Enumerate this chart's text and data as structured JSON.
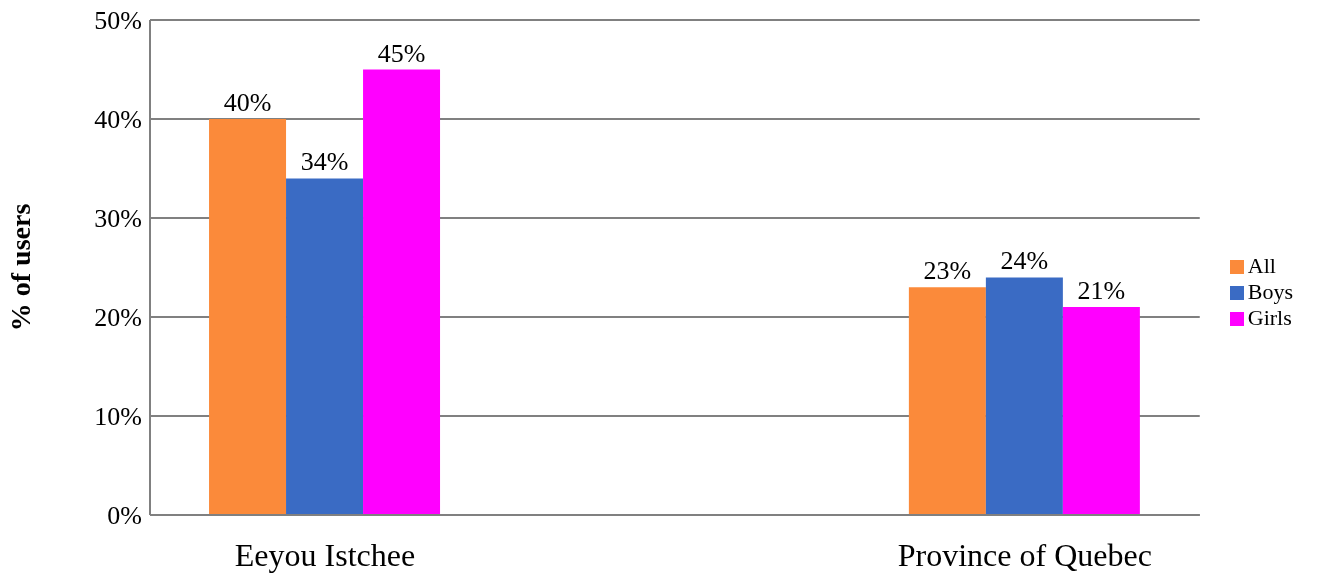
{
  "chart_data": {
    "type": "bar",
    "ylabel": "% of users",
    "categories": [
      "Eeyou Istchee",
      "Province of Quebec"
    ],
    "series": [
      {
        "name": "All",
        "color": "#fb8a3a",
        "values": [
          40,
          23
        ],
        "value_labels": [
          "40%",
          "23%"
        ]
      },
      {
        "name": "Boys",
        "color": "#3a6bc4",
        "values": [
          34,
          24
        ],
        "value_labels": [
          "34%",
          "24%"
        ]
      },
      {
        "name": "Girls",
        "color": "#ff00ff",
        "values": [
          45,
          21
        ],
        "value_labels": [
          "45%",
          "21%"
        ]
      }
    ],
    "ylim": [
      0,
      50
    ],
    "yticks": [
      {
        "value": 0,
        "label": "0%"
      },
      {
        "value": 10,
        "label": "10%"
      },
      {
        "value": 20,
        "label": "20%"
      },
      {
        "value": 30,
        "label": "30%"
      },
      {
        "value": 40,
        "label": "40%"
      },
      {
        "value": 50,
        "label": "50%"
      }
    ],
    "grid": "y",
    "legend": "right"
  }
}
